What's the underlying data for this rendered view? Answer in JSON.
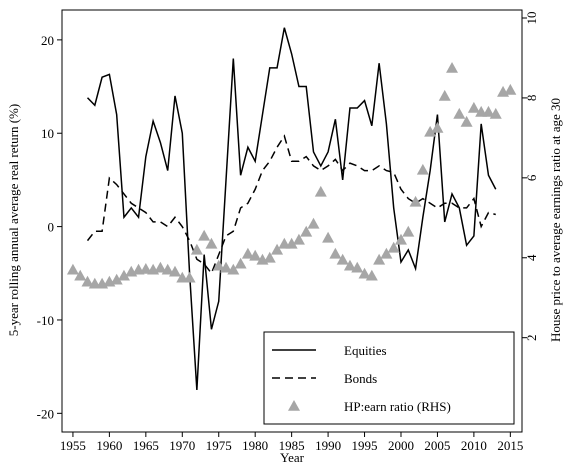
{
  "chart_data": {
    "type": "line",
    "xlabel": "Year",
    "ylabel": "5-year rolling annual average real return (%)",
    "y2label": "House price to average earnings ratio at age 30",
    "xlim": [
      1953.5,
      2016.6
    ],
    "xticks": [
      1955,
      1960,
      1965,
      1970,
      1975,
      1980,
      1985,
      1990,
      1995,
      2000,
      2005,
      2010,
      2015
    ],
    "ylim": [
      -22,
      23.2
    ],
    "yticks": [
      -20,
      -10,
      0,
      10,
      20
    ],
    "y2lim": [
      -0.36,
      10.2
    ],
    "y2ticks": [
      2,
      4,
      6,
      8,
      10
    ],
    "legend": "bottom-right",
    "series": [
      {
        "name": "Equities",
        "color": "#000000",
        "style": "solid",
        "x": [
          1957,
          1958,
          1959,
          1960,
          1961,
          1962,
          1963,
          1964,
          1965,
          1966,
          1967,
          1968,
          1969,
          1970,
          1971,
          1972,
          1973,
          1974,
          1975,
          1976,
          1977,
          1978,
          1979,
          1980,
          1981,
          1982,
          1983,
          1984,
          1985,
          1986,
          1987,
          1988,
          1989,
          1990,
          1991,
          1992,
          1993,
          1994,
          1995,
          1996,
          1997,
          1998,
          1999,
          2000,
          2001,
          2002,
          2003,
          2004,
          2005,
          2006,
          2007,
          2008,
          2009,
          2010,
          2011,
          2012,
          2013
        ],
        "values": [
          13.8,
          13,
          16,
          16.3,
          12,
          1,
          2,
          1,
          7.5,
          11.3,
          9,
          6,
          14,
          10,
          -5,
          -17.5,
          -3,
          -11,
          -8,
          5,
          18,
          5.5,
          8.5,
          7,
          12,
          17,
          17,
          21.3,
          18.5,
          15,
          15,
          8,
          6.5,
          8,
          11.5,
          5,
          12.7,
          12.7,
          13.5,
          10.8,
          17.5,
          11,
          2,
          -3.8,
          -2.5,
          -4.5,
          1,
          6,
          12,
          0.5,
          3.5,
          2,
          -2,
          -1,
          11,
          5.5,
          4
        ]
      },
      {
        "name": "Bonds",
        "color": "#000000",
        "style": "dashed",
        "x": [
          1957,
          1958,
          1959,
          1960,
          1961,
          1962,
          1963,
          1964,
          1965,
          1966,
          1967,
          1968,
          1969,
          1970,
          1971,
          1972,
          1973,
          1974,
          1975,
          1976,
          1977,
          1978,
          1979,
          1980,
          1981,
          1982,
          1983,
          1984,
          1985,
          1986,
          1987,
          1988,
          1989,
          1990,
          1991,
          1992,
          1993,
          1994,
          1995,
          1996,
          1997,
          1998,
          1999,
          2000,
          2001,
          2002,
          2003,
          2004,
          2005,
          2006,
          2007,
          2008,
          2009,
          2010,
          2011,
          2012,
          2013
        ],
        "values": [
          -1.5,
          -0.5,
          -0.5,
          5.2,
          4.5,
          3.5,
          2.5,
          2,
          1.5,
          0.5,
          0.5,
          0,
          1,
          0,
          -1.5,
          -3.5,
          -4,
          -5,
          -3,
          -1,
          -0.5,
          2,
          2.5,
          4,
          6,
          7,
          8.5,
          9.7,
          7,
          7,
          7.5,
          6.5,
          6,
          6.5,
          7.2,
          6,
          6.8,
          6.5,
          6,
          6,
          6.5,
          6,
          5.8,
          4,
          3,
          2.5,
          3,
          2.5,
          2,
          2.5,
          2.5,
          2,
          2,
          3,
          0,
          1.5,
          1.3
        ]
      },
      {
        "name": "HP:earn ratio (RHS)",
        "color": "#a6a6a6",
        "style": "marker",
        "axis": "y2",
        "x": [
          1955,
          1956,
          1957,
          1958,
          1959,
          1960,
          1961,
          1962,
          1963,
          1964,
          1965,
          1966,
          1967,
          1968,
          1969,
          1970,
          1971,
          1972,
          1973,
          1974,
          1975,
          1976,
          1977,
          1978,
          1979,
          1980,
          1981,
          1982,
          1983,
          1984,
          1985,
          1986,
          1987,
          1988,
          1989,
          1990,
          1991,
          1992,
          1993,
          1994,
          1995,
          1996,
          1997,
          1998,
          1999,
          2000,
          2001,
          2002,
          2003,
          2004,
          2005,
          2006,
          2007,
          2008,
          2009,
          2010,
          2011,
          2012,
          2013,
          2014,
          2015
        ],
        "values": [
          3.7,
          3.55,
          3.4,
          3.35,
          3.35,
          3.4,
          3.45,
          3.55,
          3.65,
          3.7,
          3.72,
          3.7,
          3.75,
          3.7,
          3.65,
          3.5,
          3.5,
          4.2,
          4.55,
          4.35,
          3.8,
          3.75,
          3.7,
          3.85,
          4.1,
          4.05,
          3.95,
          4,
          4.2,
          4.35,
          4.35,
          4.45,
          4.65,
          4.85,
          5.65,
          4.5,
          4.1,
          3.95,
          3.8,
          3.75,
          3.6,
          3.55,
          3.95,
          4.1,
          4.25,
          4.45,
          4.65,
          5.4,
          6.2,
          7.15,
          7.25,
          8.05,
          8.75,
          7.6,
          7.4,
          7.75,
          7.65,
          7.65,
          7.6,
          8.15,
          8.2
        ]
      }
    ]
  }
}
